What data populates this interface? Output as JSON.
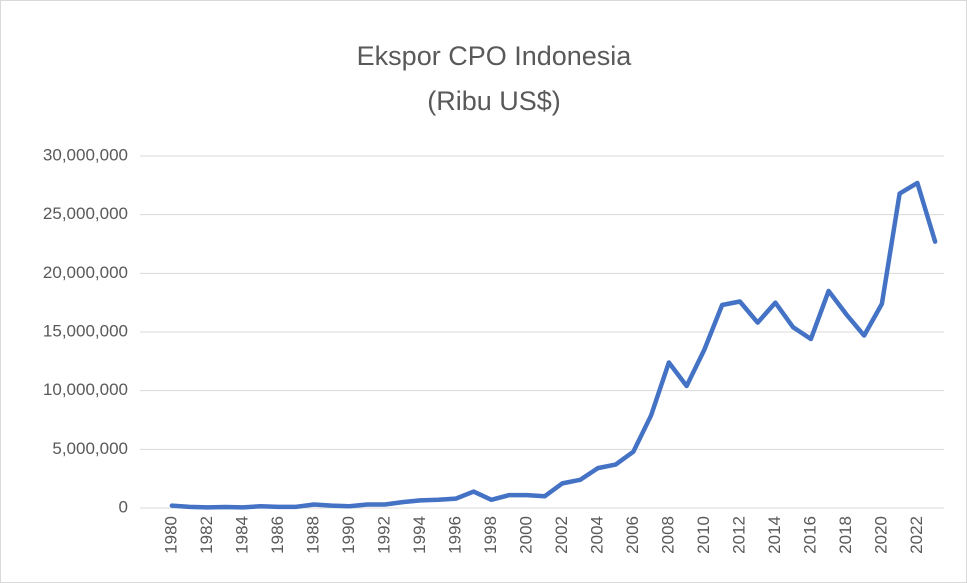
{
  "chart_data": {
    "type": "line",
    "title": "Ekspor CPO Indonesia",
    "subtitle": "(Ribu US$)",
    "x": [
      1980,
      1981,
      1982,
      1983,
      1984,
      1985,
      1986,
      1987,
      1988,
      1989,
      1990,
      1991,
      1992,
      1993,
      1994,
      1995,
      1996,
      1997,
      1998,
      1999,
      2000,
      2001,
      2002,
      2003,
      2004,
      2005,
      2006,
      2007,
      2008,
      2009,
      2010,
      2011,
      2012,
      2013,
      2014,
      2015,
      2016,
      2017,
      2018,
      2019,
      2020,
      2021,
      2022,
      2023
    ],
    "series": [
      {
        "color": "#4472c4",
        "values": [
          200000,
          100000,
          50000,
          80000,
          50000,
          150000,
          100000,
          100000,
          300000,
          200000,
          150000,
          300000,
          300000,
          500000,
          650000,
          700000,
          800000,
          1400000,
          700000,
          1100000,
          1100000,
          1000000,
          2100000,
          2400000,
          3400000,
          3700000,
          4800000,
          7900000,
          12400000,
          10400000,
          13500000,
          17300000,
          17600000,
          15800000,
          17500000,
          15400000,
          14400000,
          18500000,
          16500000,
          14700000,
          17400000,
          26800000,
          27700000,
          22700000
        ]
      }
    ],
    "xlim": [
      1979.5,
      2023.5
    ],
    "xticks": [
      1980,
      1982,
      1984,
      1986,
      1988,
      1990,
      1992,
      1994,
      1996,
      1998,
      2000,
      2002,
      2004,
      2006,
      2008,
      2010,
      2012,
      2014,
      2016,
      2018,
      2020,
      2022
    ],
    "ylim": [
      0,
      30000000
    ],
    "yticks": [
      0,
      {
        "value": 5000000,
        "label": "5,000,000"
      },
      {
        "value": 10000000,
        "label": "10,000,000"
      },
      {
        "value": 15000000,
        "label": "15,000,000"
      },
      {
        "value": 20000000,
        "label": "20,000,000"
      },
      {
        "value": 25000000,
        "label": "25,000,000"
      },
      {
        "value": 30000000,
        "label": "30,000,000"
      }
    ],
    "grid": true
  }
}
